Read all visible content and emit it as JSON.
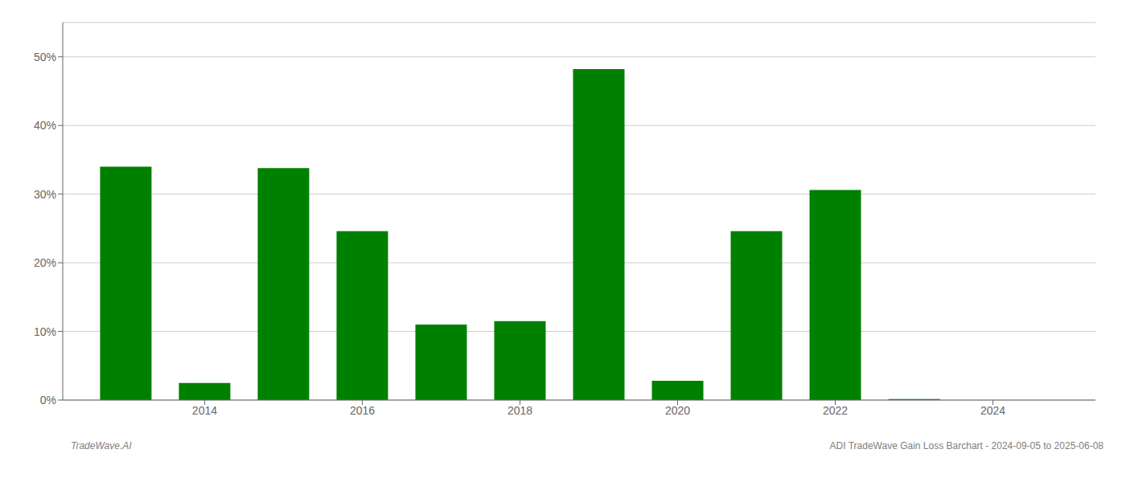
{
  "chart_data": {
    "type": "bar",
    "x": [
      2013,
      2014,
      2015,
      2016,
      2017,
      2018,
      2019,
      2020,
      2021,
      2022,
      2023,
      2024
    ],
    "values": [
      34.0,
      2.5,
      33.8,
      24.6,
      11.0,
      11.5,
      48.2,
      2.8,
      24.6,
      30.6,
      0.15,
      0.0
    ],
    "color": "#008000",
    "xlim": [
      2012.2,
      2025.3
    ],
    "xticks": [
      2014,
      2016,
      2018,
      2020,
      2022,
      2024
    ],
    "ylim": [
      0,
      55
    ],
    "yticks": [
      {
        "value": 0,
        "label": "0%"
      },
      {
        "value": 10,
        "label": "10%"
      },
      {
        "value": 20,
        "label": "20%"
      },
      {
        "value": 30,
        "label": "30%"
      },
      {
        "value": 40,
        "label": "40%"
      },
      {
        "value": 50,
        "label": "50%"
      }
    ],
    "grid": true,
    "annotations": [
      "TradeWave.AI",
      "ADI TradeWave Gain Loss Barchart - 2024-09-05 to 2025-06-08"
    ]
  }
}
